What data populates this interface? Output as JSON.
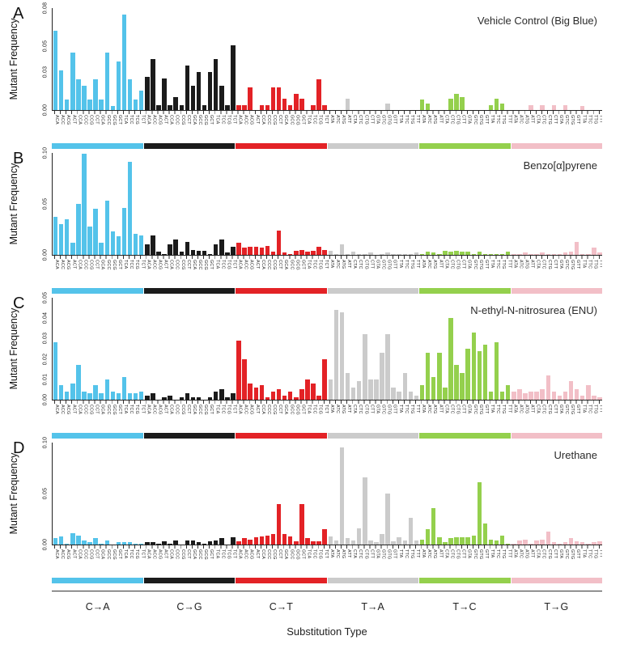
{
  "figure": {
    "y_axis_label": "Mutant Frequency",
    "x_axis_label": "Substitution Type"
  },
  "chart_data": {
    "type": "bar",
    "subtype": "trinucleotide-context-mutation-spectrum",
    "grid": false,
    "legend_position": "none",
    "substitution_types": [
      "C→A",
      "C→G",
      "C→T",
      "T→A",
      "T→C",
      "T→G"
    ],
    "colors": [
      "#54C3EA",
      "#1B1B1B",
      "#E32226",
      "#CBCBCB",
      "#94D04D",
      "#F2BFC7"
    ],
    "contexts_c": [
      "ACA",
      "ACC",
      "ACG",
      "ACT",
      "CCA",
      "CCC",
      "CCG",
      "CCT",
      "GCA",
      "GCC",
      "GCG",
      "GCT",
      "TCA",
      "TCC",
      "TCG",
      "TCT"
    ],
    "contexts_t": [
      "ATA",
      "ATC",
      "ATG",
      "ATT",
      "CTA",
      "CTC",
      "CTG",
      "CTT",
      "GTA",
      "GTC",
      "GTG",
      "GTT",
      "TTA",
      "TTC",
      "TTG",
      "TTT"
    ],
    "panels": [
      {
        "label": "A",
        "title": "Vehicle Control (Big Blue)",
        "ylim": [
          0,
          0.08
        ],
        "yticks": [
          0,
          0.03,
          0.05,
          0.08
        ],
        "ytick_labels": [
          "0.00",
          "0.03",
          "0.05",
          "0.08"
        ],
        "series": [
          {
            "name": "C→A",
            "values": [
              0.062,
              0.031,
              0.008,
              0.045,
              0.024,
              0.019,
              0.008,
              0.024,
              0.008,
              0.045,
              0.003,
              0.038,
              0.075,
              0.024,
              0.008,
              0.015
            ]
          },
          {
            "name": "C→G",
            "values": [
              0.026,
              0.04,
              0.004,
              0.025,
              0.004,
              0.01,
              0.004,
              0.035,
              0.019,
              0.03,
              0.004,
              0.03,
              0.04,
              0.019,
              0.004,
              0.051
            ]
          },
          {
            "name": "C→T",
            "values": [
              0.004,
              0.004,
              0.018,
              0.0,
              0.004,
              0.004,
              0.018,
              0.018,
              0.009,
              0.004,
              0.013,
              0.009,
              0.0,
              0.004,
              0.024,
              0.004
            ]
          },
          {
            "name": "T→A",
            "values": [
              0.0,
              0.0,
              0.0,
              0.009,
              0.0,
              0.0,
              0.0,
              0.0,
              0.0,
              0.0,
              0.005,
              0.0,
              0.0,
              0.0,
              0.0,
              0.0
            ]
          },
          {
            "name": "T→C",
            "values": [
              0.008,
              0.005,
              0.0,
              0.0,
              0.0,
              0.009,
              0.013,
              0.01,
              0.0,
              0.0,
              0.0,
              0.0,
              0.004,
              0.009,
              0.005,
              0.0
            ]
          },
          {
            "name": "T→G",
            "values": [
              0.0,
              0.0,
              0.0,
              0.004,
              0.0,
              0.004,
              0.0,
              0.004,
              0.0,
              0.004,
              0.0,
              0.0,
              0.003,
              0.0,
              0.0,
              0.0
            ]
          }
        ]
      },
      {
        "label": "B",
        "title": "Benzo[α]pyrene",
        "ylim": [
          0,
          0.1
        ],
        "yticks": [
          0,
          0.05,
          0.1
        ],
        "ytick_labels": [
          "0.00",
          "0.05",
          "0.10"
        ],
        "series": [
          {
            "name": "C→A",
            "values": [
              0.037,
              0.03,
              0.035,
              0.012,
              0.05,
              0.099,
              0.028,
              0.045,
              0.012,
              0.053,
              0.023,
              0.018,
              0.046,
              0.091,
              0.021,
              0.019
            ]
          },
          {
            "name": "C→G",
            "values": [
              0.01,
              0.019,
              0.003,
              0.001,
              0.01,
              0.015,
              0.003,
              0.013,
              0.005,
              0.004,
              0.004,
              0.001,
              0.01,
              0.015,
              0.002,
              0.008
            ]
          },
          {
            "name": "C→T",
            "values": [
              0.012,
              0.007,
              0.008,
              0.008,
              0.007,
              0.009,
              0.003,
              0.024,
              0.002,
              0.001,
              0.004,
              0.005,
              0.003,
              0.004,
              0.008,
              0.005
            ]
          },
          {
            "name": "T→A",
            "values": [
              0.004,
              0.001,
              0.01,
              0.001,
              0.003,
              0.001,
              0.001,
              0.002,
              0.0,
              0.001,
              0.002,
              0.001,
              0.001,
              0.001,
              0.001,
              0.002
            ]
          },
          {
            "name": "T→C",
            "values": [
              0.001,
              0.003,
              0.002,
              0.001,
              0.004,
              0.003,
              0.004,
              0.003,
              0.003,
              0.001,
              0.003,
              0.001,
              0.001,
              0.001,
              0.001,
              0.003
            ]
          },
          {
            "name": "T→G",
            "values": [
              0.001,
              0.001,
              0.002,
              0.001,
              0.001,
              0.002,
              0.001,
              0.001,
              0.001,
              0.002,
              0.003,
              0.013,
              0.001,
              0.001,
              0.007,
              0.002
            ]
          }
        ]
      },
      {
        "label": "C",
        "title": "N-ethyl-N-nitrosurea (ENU)",
        "ylim": [
          0,
          0.05
        ],
        "yticks": [
          0,
          0.01,
          0.02,
          0.03,
          0.04,
          0.05
        ],
        "ytick_labels": [
          "0.00",
          "0.01",
          "0.02",
          "0.03",
          "0.04",
          "0.05"
        ],
        "series": [
          {
            "name": "C→A",
            "values": [
              0.028,
              0.007,
              0.004,
              0.008,
              0.017,
              0.004,
              0.003,
              0.007,
              0.003,
              0.01,
              0.004,
              0.003,
              0.011,
              0.003,
              0.003,
              0.004
            ]
          },
          {
            "name": "C→G",
            "values": [
              0.002,
              0.003,
              0.0,
              0.001,
              0.002,
              0.0,
              0.001,
              0.003,
              0.001,
              0.001,
              0.0,
              0.001,
              0.004,
              0.005,
              0.001,
              0.003
            ]
          },
          {
            "name": "C→T",
            "values": [
              0.029,
              0.02,
              0.008,
              0.006,
              0.007,
              0.001,
              0.004,
              0.005,
              0.002,
              0.004,
              0.001,
              0.005,
              0.01,
              0.008,
              0.002,
              0.02
            ]
          },
          {
            "name": "T→A",
            "values": [
              0.01,
              0.044,
              0.043,
              0.013,
              0.006,
              0.009,
              0.032,
              0.01,
              0.01,
              0.023,
              0.032,
              0.006,
              0.004,
              0.013,
              0.004,
              0.002
            ]
          },
          {
            "name": "T→C",
            "values": [
              0.007,
              0.023,
              0.011,
              0.023,
              0.006,
              0.04,
              0.017,
              0.013,
              0.025,
              0.033,
              0.024,
              0.027,
              0.004,
              0.028,
              0.004,
              0.007
            ]
          },
          {
            "name": "T→G",
            "values": [
              0.004,
              0.005,
              0.003,
              0.004,
              0.004,
              0.005,
              0.012,
              0.004,
              0.002,
              0.004,
              0.009,
              0.005,
              0.002,
              0.007,
              0.002,
              0.001
            ]
          }
        ]
      },
      {
        "label": "D",
        "title": "Urethane",
        "ylim": [
          0,
          0.1
        ],
        "yticks": [
          0,
          0.05,
          0.1
        ],
        "ytick_labels": [
          "0.00",
          "0.05",
          "0.10"
        ],
        "series": [
          {
            "name": "C→A",
            "values": [
              0.006,
              0.008,
              0.001,
              0.011,
              0.009,
              0.004,
              0.002,
              0.006,
              0.001,
              0.004,
              0.0,
              0.002,
              0.002,
              0.002,
              0.001,
              0.001
            ]
          },
          {
            "name": "C→G",
            "values": [
              0.002,
              0.002,
              0.001,
              0.003,
              0.001,
              0.004,
              0.0,
              0.004,
              0.004,
              0.002,
              0.001,
              0.003,
              0.004,
              0.006,
              0.0,
              0.007
            ]
          },
          {
            "name": "C→T",
            "values": [
              0.003,
              0.006,
              0.005,
              0.007,
              0.008,
              0.009,
              0.01,
              0.04,
              0.01,
              0.008,
              0.003,
              0.04,
              0.006,
              0.003,
              0.003,
              0.015
            ]
          },
          {
            "name": "T→A",
            "values": [
              0.008,
              0.004,
              0.095,
              0.006,
              0.004,
              0.016,
              0.066,
              0.004,
              0.002,
              0.01,
              0.05,
              0.003,
              0.007,
              0.004,
              0.026,
              0.004
            ]
          },
          {
            "name": "T→C",
            "values": [
              0.005,
              0.015,
              0.036,
              0.007,
              0.002,
              0.006,
              0.007,
              0.007,
              0.007,
              0.009,
              0.061,
              0.021,
              0.005,
              0.004,
              0.009,
              0.001
            ]
          },
          {
            "name": "T→G",
            "values": [
              0.001,
              0.004,
              0.005,
              0.001,
              0.004,
              0.005,
              0.013,
              0.002,
              0.001,
              0.002,
              0.006,
              0.003,
              0.002,
              0.001,
              0.002,
              0.003
            ]
          }
        ]
      }
    ]
  }
}
